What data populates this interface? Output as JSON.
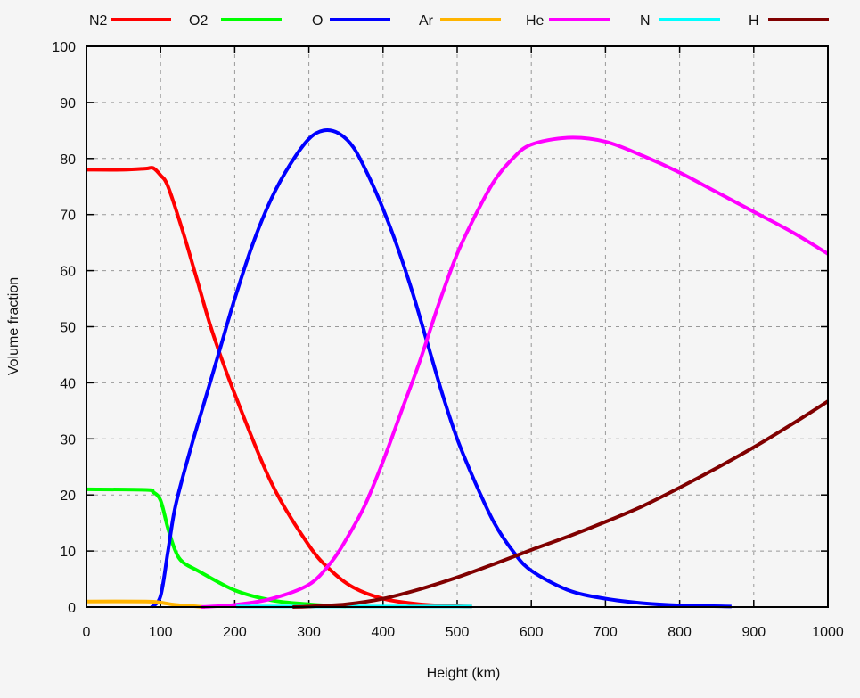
{
  "chart_data": {
    "type": "line",
    "xlabel": "Height (km)",
    "ylabel": "Volume fraction",
    "xlim": [
      0,
      1000
    ],
    "ylim": [
      0,
      100
    ],
    "xticks": [
      "0",
      "100",
      "200",
      "300",
      "400",
      "500",
      "600",
      "700",
      "800",
      "900",
      "1000"
    ],
    "yticks": [
      "0",
      "10",
      "20",
      "30",
      "40",
      "50",
      "60",
      "70",
      "80",
      "90",
      "100"
    ],
    "grid": true,
    "legend_position": "top",
    "series": [
      {
        "name": "N2",
        "color": "#ff0000",
        "points": [
          [
            0,
            78
          ],
          [
            50,
            78
          ],
          [
            80,
            78.2
          ],
          [
            90,
            78.3
          ],
          [
            100,
            77
          ],
          [
            110,
            75
          ],
          [
            130,
            67
          ],
          [
            150,
            58
          ],
          [
            170,
            49
          ],
          [
            200,
            38
          ],
          [
            250,
            22
          ],
          [
            300,
            11
          ],
          [
            330,
            6.5
          ],
          [
            360,
            3.5
          ],
          [
            400,
            1.5
          ],
          [
            450,
            0.5
          ],
          [
            500,
            0.15
          ],
          [
            520,
            0.1
          ]
        ]
      },
      {
        "name": "O2",
        "color": "#00ff00",
        "points": [
          [
            0,
            21
          ],
          [
            80,
            20.9
          ],
          [
            90,
            20.5
          ],
          [
            100,
            19
          ],
          [
            110,
            14
          ],
          [
            120,
            10
          ],
          [
            130,
            8
          ],
          [
            150,
            6.5
          ],
          [
            200,
            3
          ],
          [
            250,
            1.2
          ],
          [
            300,
            0.5
          ],
          [
            350,
            0.1
          ]
        ]
      },
      {
        "name": "O",
        "color": "#0000ff",
        "points": [
          [
            88,
            0
          ],
          [
            100,
            2
          ],
          [
            110,
            10
          ],
          [
            120,
            18
          ],
          [
            140,
            28
          ],
          [
            160,
            37
          ],
          [
            180,
            46
          ],
          [
            200,
            55
          ],
          [
            225,
            65
          ],
          [
            250,
            73
          ],
          [
            275,
            79
          ],
          [
            300,
            83.5
          ],
          [
            320,
            85
          ],
          [
            340,
            84.5
          ],
          [
            360,
            82
          ],
          [
            380,
            77
          ],
          [
            400,
            71
          ],
          [
            420,
            64
          ],
          [
            440,
            56
          ],
          [
            460,
            47
          ],
          [
            480,
            38
          ],
          [
            500,
            30
          ],
          [
            525,
            22
          ],
          [
            550,
            15
          ],
          [
            575,
            10
          ],
          [
            600,
            6.5
          ],
          [
            650,
            3
          ],
          [
            700,
            1.5
          ],
          [
            750,
            0.7
          ],
          [
            800,
            0.3
          ],
          [
            870,
            0.1
          ]
        ]
      },
      {
        "name": "Ar",
        "color": "#ffb400",
        "points": [
          [
            0,
            1
          ],
          [
            80,
            1
          ],
          [
            100,
            0.8
          ],
          [
            120,
            0.4
          ],
          [
            150,
            0.1
          ],
          [
            160,
            0
          ]
        ]
      },
      {
        "name": "He",
        "color": "#ff00ff",
        "points": [
          [
            155,
            0
          ],
          [
            200,
            0.4
          ],
          [
            250,
            1.5
          ],
          [
            300,
            4
          ],
          [
            330,
            8
          ],
          [
            350,
            12
          ],
          [
            375,
            18
          ],
          [
            400,
            26
          ],
          [
            425,
            35
          ],
          [
            450,
            44
          ],
          [
            475,
            54
          ],
          [
            500,
            63
          ],
          [
            525,
            70
          ],
          [
            550,
            76
          ],
          [
            575,
            80
          ],
          [
            600,
            82.5
          ],
          [
            650,
            83.7
          ],
          [
            700,
            83
          ],
          [
            750,
            80.5
          ],
          [
            800,
            77.5
          ],
          [
            850,
            74
          ],
          [
            900,
            70.5
          ],
          [
            950,
            67
          ],
          [
            1000,
            63
          ]
        ]
      },
      {
        "name": "N",
        "color": "#00ffff",
        "points": [
          [
            202,
            0.1
          ],
          [
            520,
            0.1
          ]
        ]
      },
      {
        "name": "H",
        "color": "#800000",
        "points": [
          [
            278,
            0
          ],
          [
            300,
            0.1
          ],
          [
            350,
            0.5
          ],
          [
            400,
            1.5
          ],
          [
            450,
            3.2
          ],
          [
            500,
            5.3
          ],
          [
            550,
            7.7
          ],
          [
            600,
            10.2
          ],
          [
            650,
            12.6
          ],
          [
            700,
            15.2
          ],
          [
            750,
            18
          ],
          [
            800,
            21.3
          ],
          [
            850,
            24.8
          ],
          [
            900,
            28.5
          ],
          [
            950,
            32.5
          ],
          [
            1000,
            36.7
          ]
        ]
      }
    ]
  }
}
